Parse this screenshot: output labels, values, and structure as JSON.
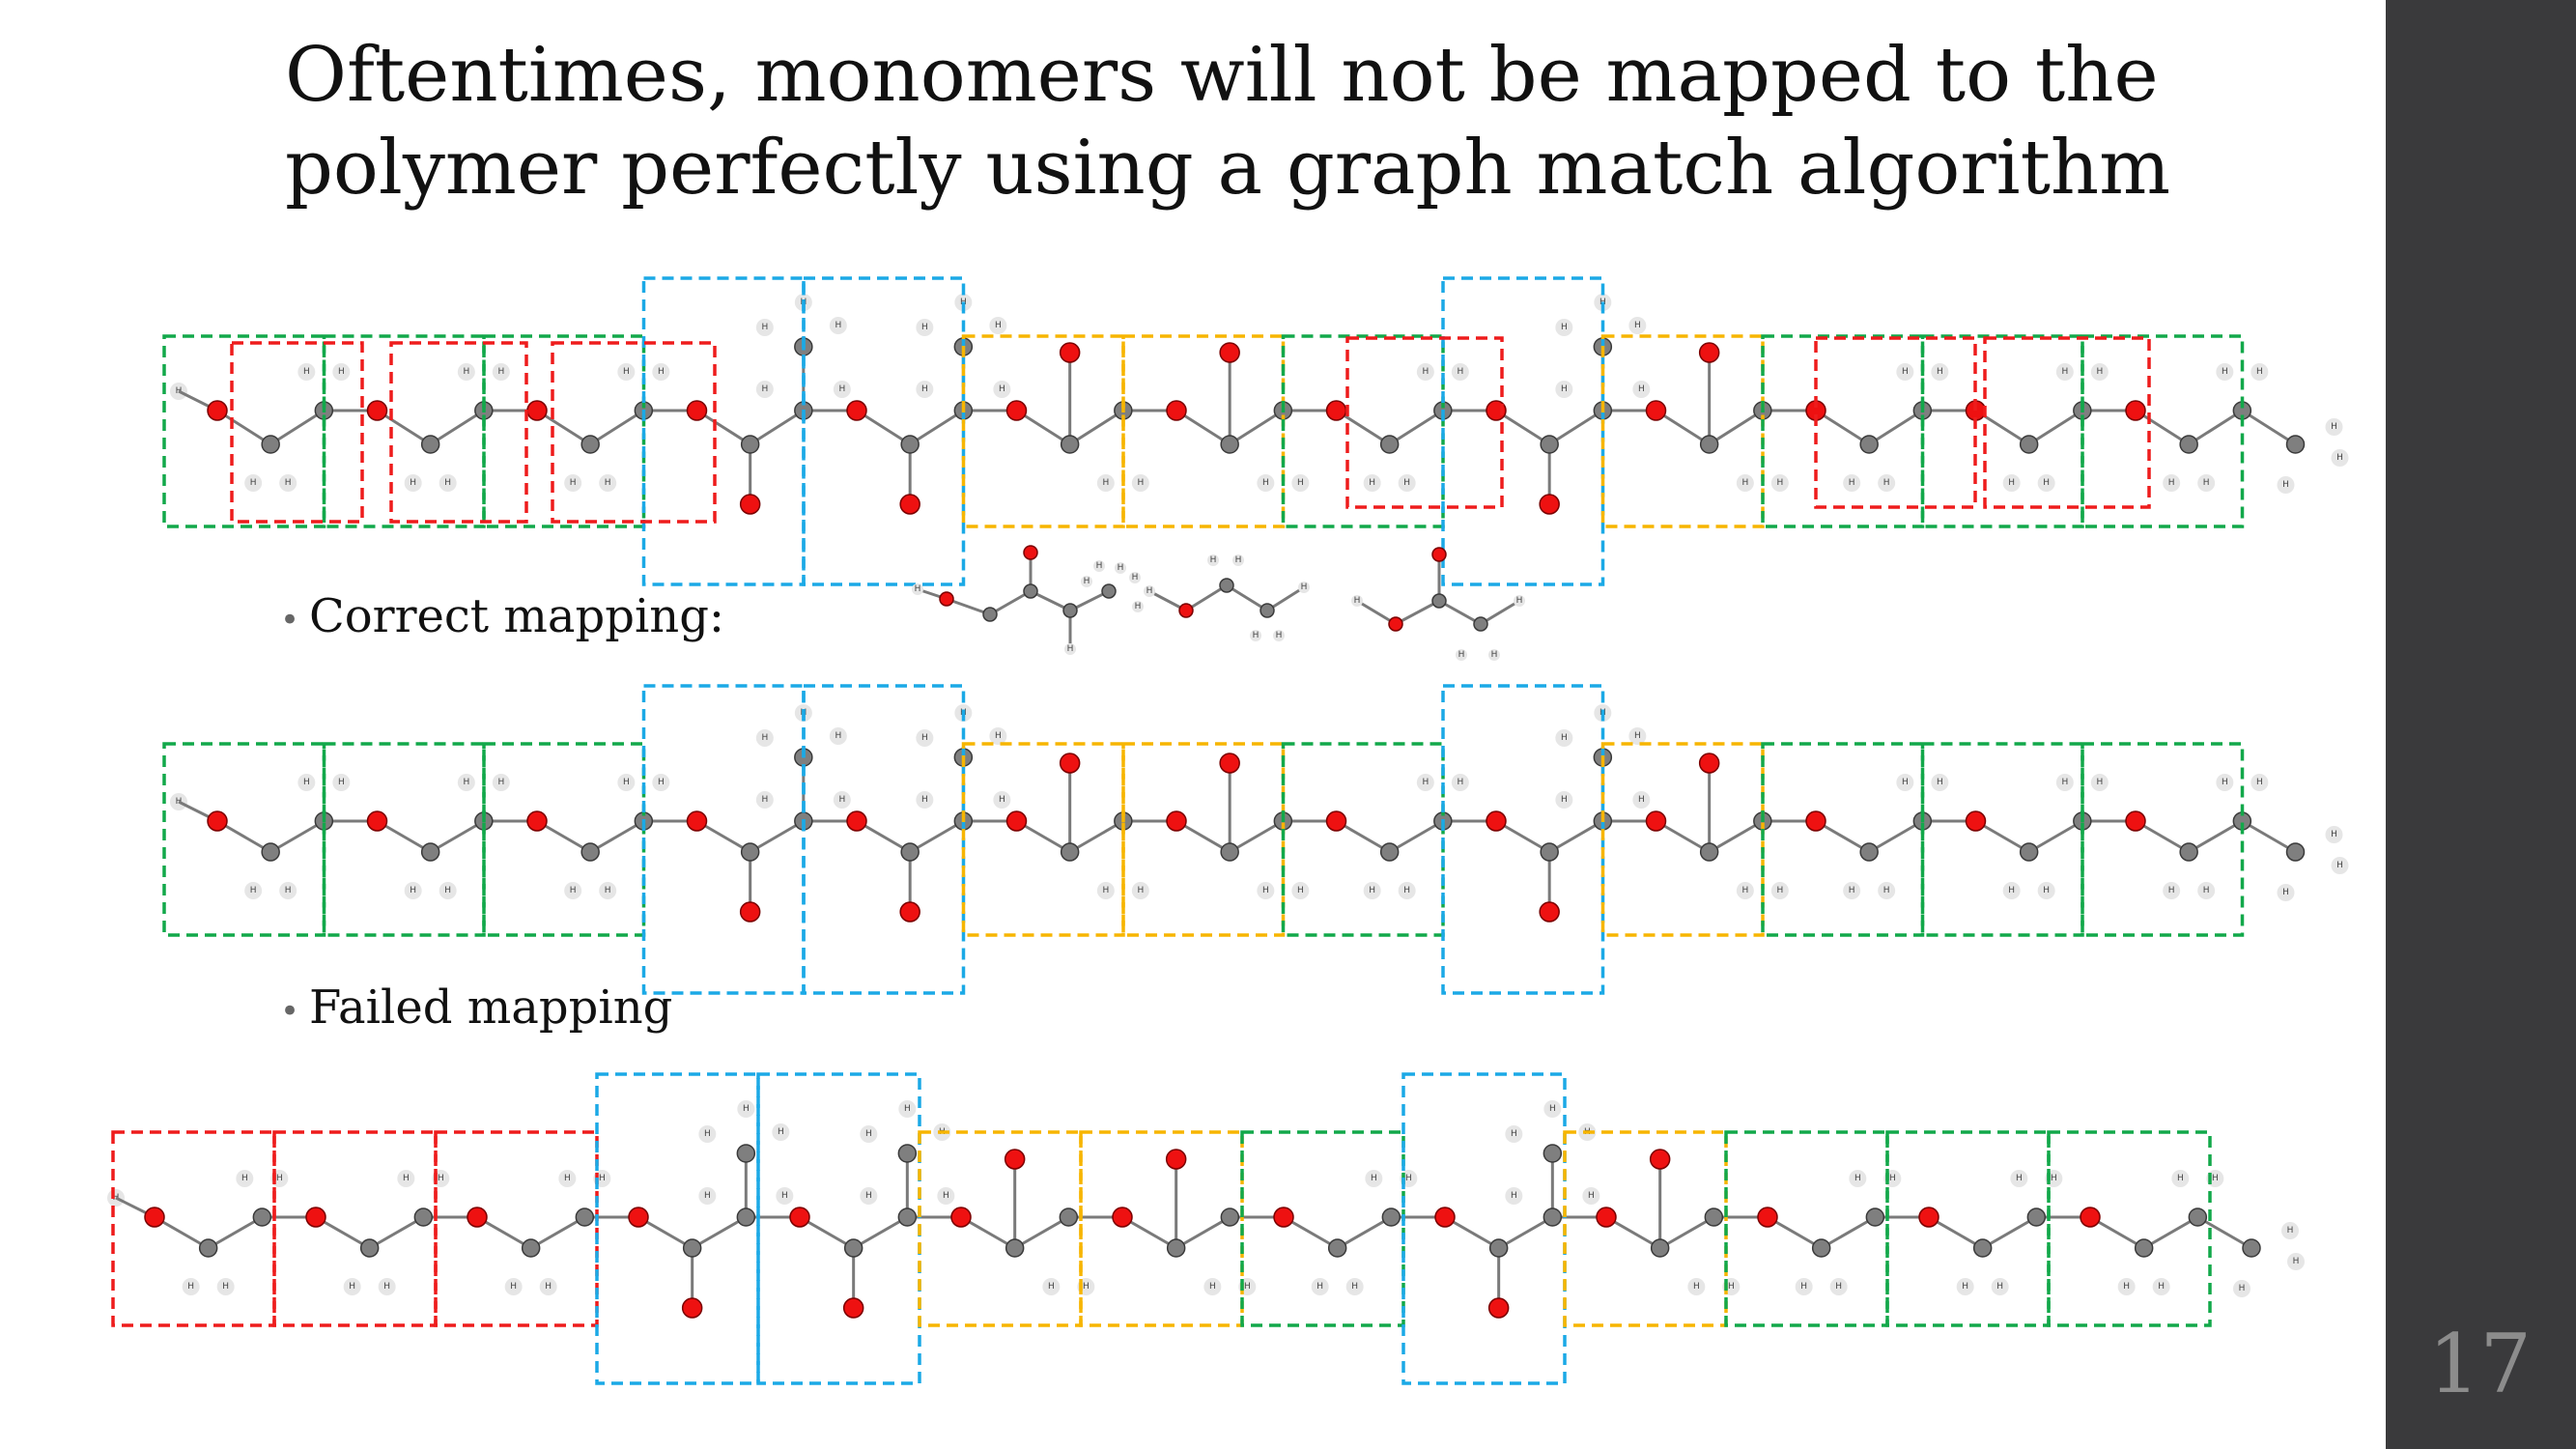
{
  "title": "Oftentimes, monomers will not be mapped to the polymer perfectly using a graph match algorithm",
  "bullets": {
    "correct": "Correct mapping:",
    "failed": "Failed mapping"
  },
  "slide_number": "17",
  "colors": {
    "ethylene_glycol_box": "#12a84a",
    "methacrylate_box": "#1ba9e6",
    "carbonate_box": "#f7b500",
    "mismatch_box": "#ee1c1c",
    "oxygen": "#ee1111",
    "carbon": "#7f7f7f",
    "hydrogen": "#e6e6e6"
  },
  "diagram": {
    "hydrogen_label": "H",
    "monomers": [
      "ethylene-glycol",
      "methacrylate",
      "carbonate"
    ],
    "polymer_sequence": [
      "ethylene-glycol",
      "ethylene-glycol",
      "ethylene-glycol",
      "methacrylate",
      "methacrylate",
      "carbonate",
      "carbonate",
      "ethylene-glycol",
      "methacrylate",
      "carbonate",
      "ethylene-glycol",
      "ethylene-glycol",
      "ethylene-glycol"
    ]
  }
}
